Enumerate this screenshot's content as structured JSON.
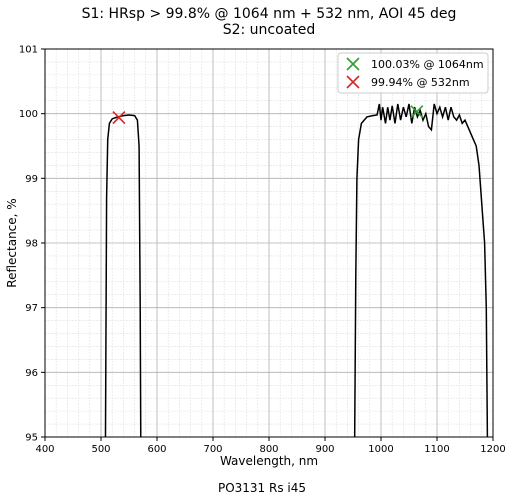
{
  "chart_data": {
    "type": "line",
    "title": "S1: HRsp > 99.8% @ 1064 nm + 532 nm, AOI 45 deg",
    "subtitle": "S2: uncoated",
    "x_label": "Wavelength, nm",
    "y_label": "Reflectance, %",
    "footer": "PO3131 Rs i45",
    "xlim": [
      400,
      1200
    ],
    "ylim": [
      95,
      101
    ],
    "xticks": [
      400,
      500,
      600,
      700,
      800,
      900,
      1000,
      1100,
      1200
    ],
    "yticks": [
      95,
      96,
      97,
      98,
      99,
      100,
      101
    ],
    "xminorticks": [
      420,
      440,
      460,
      480,
      520,
      540,
      560,
      580,
      620,
      640,
      660,
      680,
      720,
      740,
      760,
      780,
      820,
      840,
      860,
      880,
      920,
      940,
      960,
      980,
      1020,
      1040,
      1060,
      1080,
      1120,
      1140,
      1160,
      1180
    ],
    "yminorticks": [
      95.2,
      95.4,
      95.6,
      95.8,
      96.2,
      96.4,
      96.6,
      96.8,
      97.2,
      97.4,
      97.6,
      97.8,
      98.2,
      98.4,
      98.6,
      98.8,
      99.2,
      99.4,
      99.6,
      99.8,
      100.2,
      100.4,
      100.6,
      100.8
    ],
    "grid": true,
    "minor_grid": true,
    "legend": "upper right",
    "x": [
      508,
      510,
      512,
      515,
      520,
      530,
      540,
      550,
      560,
      565,
      568,
      570,
      571,
      null,
      953,
      955,
      957,
      960,
      965,
      975,
      985,
      993,
      997,
      1000,
      1003,
      1008,
      1012,
      1016,
      1020,
      1025,
      1030,
      1035,
      1040,
      1045,
      1050,
      1055,
      1060,
      1065,
      1070,
      1075,
      1080,
      1085,
      1090,
      1095,
      1100,
      1105,
      1110,
      1115,
      1120,
      1125,
      1130,
      1135,
      1140,
      1145,
      1150,
      1155,
      1160,
      1165,
      1170,
      1175,
      1180,
      1185,
      1188,
      1190
    ],
    "series": [
      {
        "color": "#000000",
        "values": [
          95,
          98.7,
          99.6,
          99.85,
          99.92,
          99.95,
          99.97,
          99.98,
          99.97,
          99.9,
          99.5,
          97,
          95,
          null,
          95,
          97.5,
          99.0,
          99.6,
          99.85,
          99.95,
          99.97,
          99.98,
          100.15,
          99.9,
          100.1,
          99.85,
          100.1,
          99.9,
          100.12,
          99.85,
          100.15,
          99.9,
          100.1,
          99.95,
          100.15,
          99.85,
          100.1,
          99.95,
          100.05,
          99.9,
          100.0,
          99.8,
          99.75,
          100.15,
          100.0,
          100.1,
          99.95,
          100.1,
          99.9,
          100.1,
          99.95,
          99.9,
          99.98,
          99.85,
          99.9,
          99.8,
          99.7,
          99.6,
          99.5,
          99.2,
          98.6,
          98.0,
          97.0,
          95
        ]
      }
    ],
    "markers": [
      {
        "name": "100.03% @ 1064nm",
        "color": "#2ca02c",
        "x": 1064,
        "y": 100.03
      },
      {
        "name": "99.94% @ 532nm",
        "color": "#d62728",
        "x": 532,
        "y": 99.94
      }
    ]
  }
}
